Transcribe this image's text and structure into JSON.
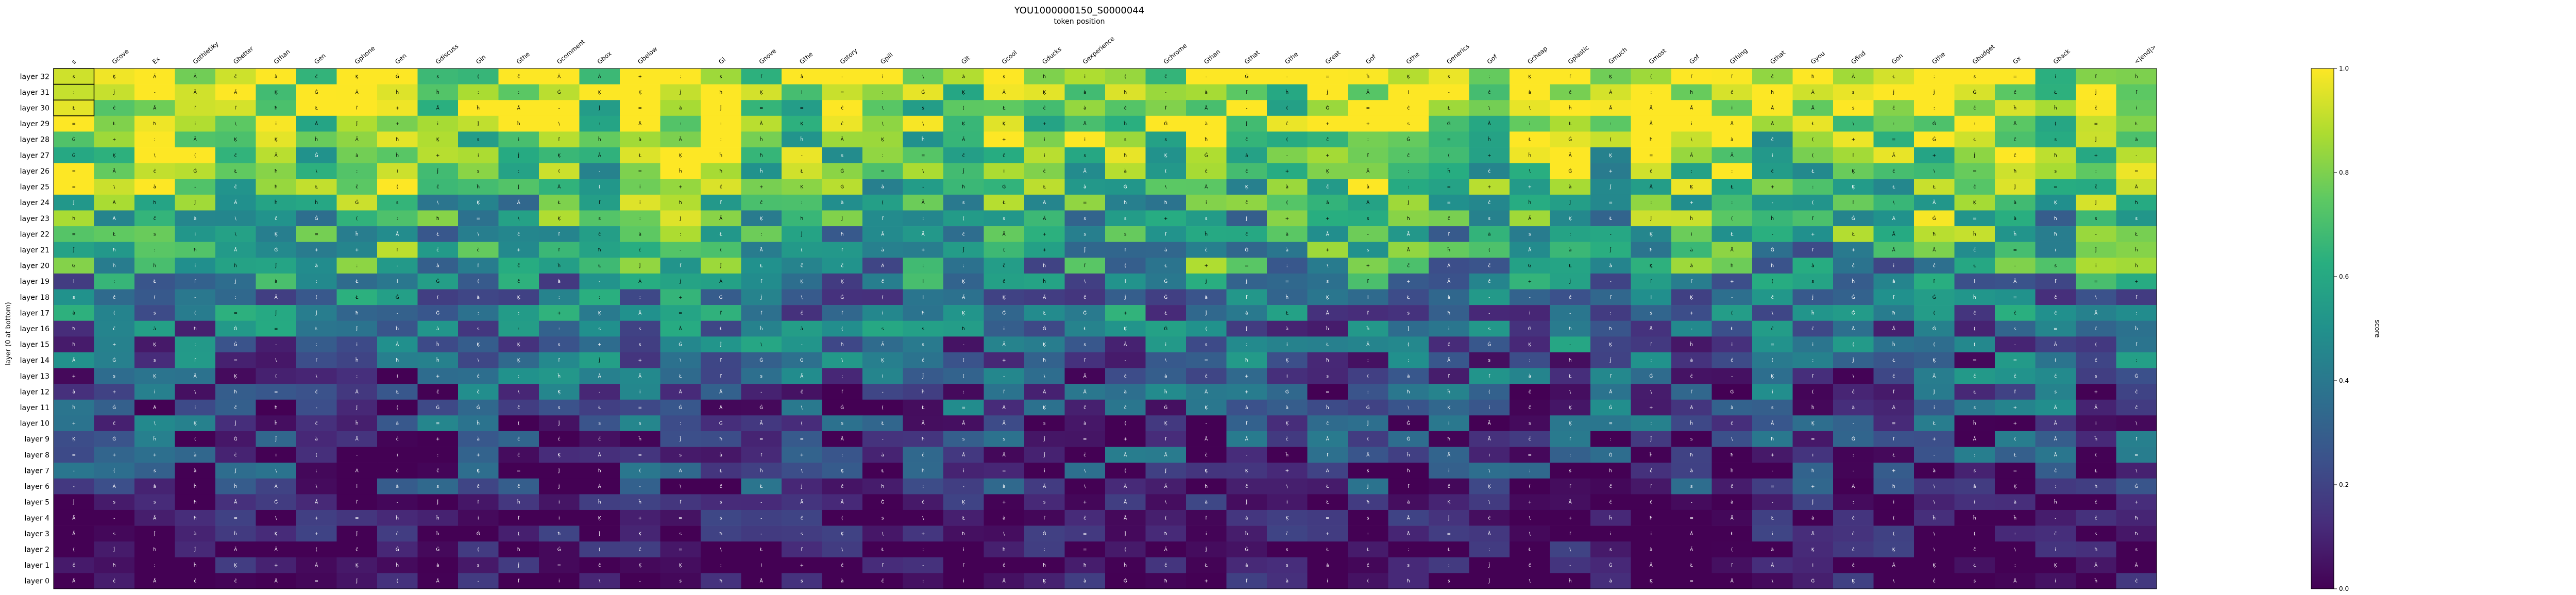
{
  "chart_data": {
    "type": "heatmap",
    "title": "YOU1000000150_S0000044",
    "xlabel": "token position",
    "ylabel": "layer (0 at bottom)",
    "colorbar_label": "score",
    "colorbar_ticks": [
      "0.0",
      "0.2",
      "0.4",
      "0.6",
      "0.8",
      "1.0"
    ],
    "colormap": "viridis",
    "zlim": [
      0,
      1
    ],
    "rows": [
      "layer 32",
      "layer 31",
      "layer 30",
      "layer 29",
      "layer 28",
      "layer 27",
      "layer 26",
      "layer 25",
      "layer 24",
      "layer 23",
      "layer 22",
      "layer 21",
      "layer 20",
      "layer 19",
      "layer 18",
      "layer 17",
      "layer 16",
      "layer 15",
      "layer 14",
      "layer 13",
      "layer 12",
      "layer 11",
      "layer 10",
      "layer 9",
      "layer 8",
      "layer 7",
      "layer 6",
      "layer 5",
      "layer 4",
      "layer 3",
      "layer 2",
      "layer 1",
      "layer 0"
    ],
    "columns": [
      "s",
      "Gcove",
      "Ex",
      "Gsthletiky",
      "Gbetter",
      "Gthan",
      "Gen",
      "Gphone",
      "Gen",
      "Gdiscuss",
      "Gin",
      "Gthe",
      "Gcomment",
      "Gbox",
      "Gbelow",
      "",
      "Gi",
      "Gnove",
      "Gthe",
      "Gstory",
      "Gpill",
      "",
      "Git",
      "Gcool",
      "Gducks",
      "Gexperience",
      "",
      "Gchrome",
      "Gthan",
      "Gthat",
      "Gthe",
      "Great",
      "Gof",
      "Gthe",
      "Generics",
      "Gof",
      "Gcheap",
      "Gplastic",
      "Gmuch",
      "Gmost",
      "Gof",
      "Gthing",
      "Gthat",
      "Gyou",
      "Gfind",
      "Gon",
      "Gthe",
      "Gbudget",
      "Gx",
      "Gback",
      "",
      "<|end|>"
    ],
    "cell_glyphs": [
      "s",
      "=",
      "i",
      "ĉ",
      "(",
      "Ā",
      "ĥ",
      "Ķ",
      "Ă",
      "+",
      "\\",
      ":",
      "č",
      "Ġ",
      "-",
      "Ł",
      "ħ",
      "ľ",
      "à",
      "Ĵ"
    ],
    "colorbar_position": "right"
  }
}
